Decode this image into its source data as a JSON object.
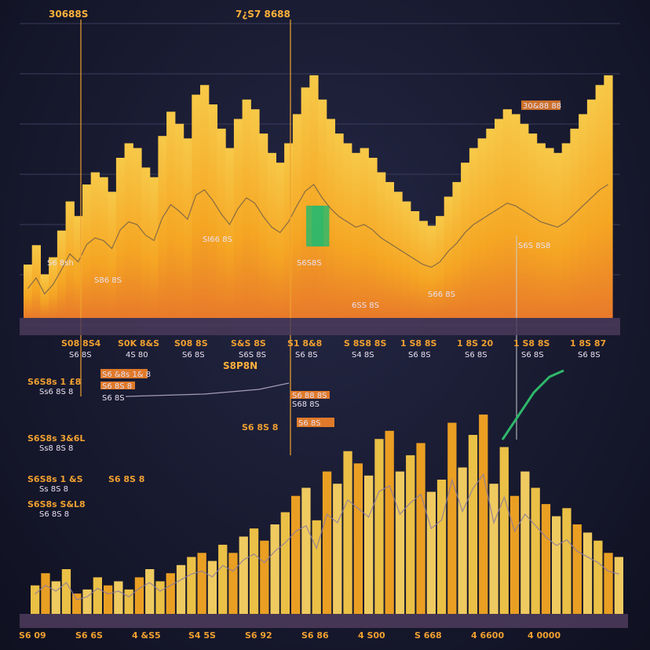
{
  "colors": {
    "background": "#1a1c33",
    "bar_light": "#f7c948",
    "bar_mid": "#f5a623",
    "bar_dark": "#e8862a",
    "band": "#4a3a5a",
    "accent_green": "#2eb86a",
    "label_orange": "#f0a030",
    "label_box": "#e07a2a"
  },
  "chart_data": [
    {
      "type": "bar",
      "title": "7¿S7 8688",
      "corner_label": "30688S",
      "annotations": [
        "30&88 88",
        "S6 8sh",
        "SI66 8S",
        "S6S8S",
        "S86 8S",
        "6SS 8S",
        "S66 8S",
        "S6S 8S8"
      ],
      "x_tick_labels": [
        "S08 8S4",
        "S0K 8&S",
        "S08 8S",
        "S&S 8S",
        "S1 8&8",
        "S 8S8 8S",
        "1 S8 8S",
        "1 8S 20",
        "1 S8 8S",
        "1 8S 87"
      ],
      "x_sub_labels": [
        "S6 8S",
        "4S 80",
        "S6 8S",
        "S6S 8S",
        "S6 8S",
        "S4 8S",
        "S6 8S",
        "S6 8S",
        "S6 8S",
        "S6 8S"
      ],
      "values": [
        22,
        30,
        18,
        25,
        36,
        48,
        42,
        55,
        60,
        58,
        52,
        66,
        72,
        70,
        62,
        58,
        75,
        85,
        80,
        74,
        92,
        96,
        88,
        78,
        70,
        82,
        90,
        86,
        76,
        68,
        64,
        72,
        84,
        95,
        100,
        90,
        82,
        76,
        72,
        68,
        70,
        66,
        60,
        56,
        52,
        48,
        44,
        40,
        38,
        42,
        50,
        56,
        64,
        70,
        74,
        78,
        82,
        86,
        84,
        80,
        76,
        72,
        70,
        68,
        72,
        78,
        84,
        90,
        96,
        100
      ],
      "green_segments": [
        [
          0.48,
          0.55
        ],
        [
          0.49,
          0.52
        ]
      ],
      "ylim": [
        0,
        110
      ]
    },
    {
      "type": "bar",
      "title": "S8P8N",
      "left_labels": [
        "S6S8s 1 £8",
        "Ss6 8S 8",
        "S6 8S 8",
        "S6S8s 3&6L",
        "Ss8 8S 8",
        "S6 8S 8",
        "S6S8s 1 &S",
        "Ss 8S 8",
        "S6 8S 8",
        "S6S8s S&L8"
      ],
      "callouts": [
        "S6 &8s 1& 8",
        "S6 8S 8",
        "S6 8S",
        "S6 88 8S",
        "S68 8S",
        "S6 8S"
      ],
      "x_tick_labels": [
        "S6 09",
        "S6 6S",
        "4 &S5",
        "S4 5S",
        "S6 92",
        "S6 86",
        "4 S00",
        "S 668",
        "4 6600",
        "4 0000"
      ],
      "values": [
        14,
        20,
        16,
        22,
        10,
        12,
        18,
        14,
        16,
        12,
        18,
        22,
        16,
        20,
        24,
        28,
        30,
        26,
        34,
        30,
        38,
        42,
        36,
        44,
        50,
        58,
        62,
        46,
        70,
        64,
        80,
        74,
        68,
        86,
        90,
        70,
        78,
        84,
        60,
        66,
        94,
        72,
        88,
        98,
        64,
        82,
        58,
        70,
        62,
        54,
        48,
        52,
        44,
        40,
        36,
        30,
        28
      ],
      "ylim": [
        0,
        110
      ]
    }
  ]
}
